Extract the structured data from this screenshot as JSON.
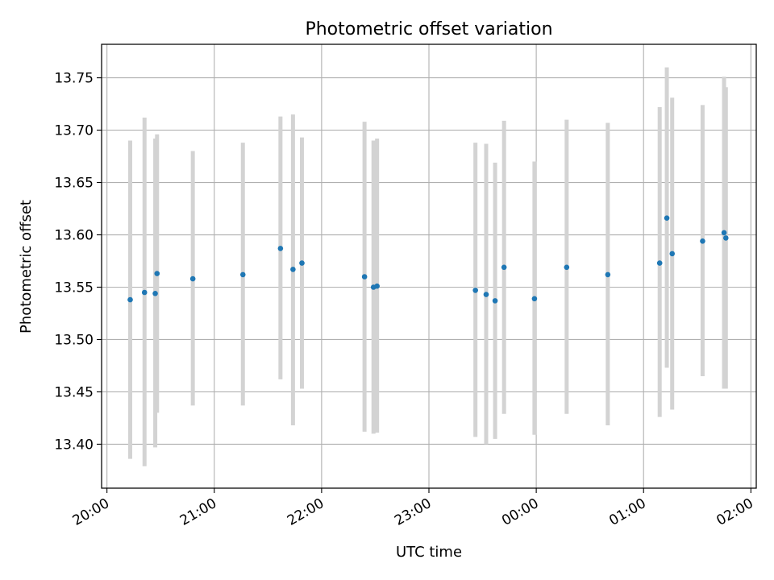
{
  "chart_data": {
    "type": "scatter",
    "title": "Photometric offset variation",
    "xlabel": "UTC time",
    "ylabel": "Photometric offset",
    "xlim": [
      "19:57",
      "02:03"
    ],
    "ylim": [
      13.358,
      13.782
    ],
    "grid": true,
    "x_ticks": [
      "20:00",
      "21:00",
      "22:00",
      "23:00",
      "00:00",
      "01:00",
      "02:00"
    ],
    "y_ticks": [
      "13.40",
      "13.45",
      "13.50",
      "13.55",
      "13.60",
      "13.65",
      "13.70",
      "13.75"
    ],
    "series": [
      {
        "marker_color": "#1f77b4",
        "errorbar_color": "#d3d3d3",
        "points": [
          {
            "t": "20:13",
            "y": 13.538,
            "lo": 13.386,
            "hi": 13.69
          },
          {
            "t": "20:21",
            "y": 13.545,
            "lo": 13.379,
            "hi": 13.712
          },
          {
            "t": "20:27",
            "y": 13.544,
            "lo": 13.397,
            "hi": 13.692
          },
          {
            "t": "20:28",
            "y": 13.563,
            "lo": 13.43,
            "hi": 13.696
          },
          {
            "t": "20:48",
            "y": 13.558,
            "lo": 13.437,
            "hi": 13.68
          },
          {
            "t": "21:16",
            "y": 13.562,
            "lo": 13.437,
            "hi": 13.688
          },
          {
            "t": "21:37",
            "y": 13.587,
            "lo": 13.462,
            "hi": 13.713
          },
          {
            "t": "21:44",
            "y": 13.567,
            "lo": 13.418,
            "hi": 13.715
          },
          {
            "t": "21:49",
            "y": 13.573,
            "lo": 13.453,
            "hi": 13.693
          },
          {
            "t": "22:24",
            "y": 13.56,
            "lo": 13.412,
            "hi": 13.708
          },
          {
            "t": "22:29",
            "y": 13.55,
            "lo": 13.41,
            "hi": 13.69
          },
          {
            "t": "22:31",
            "y": 13.551,
            "lo": 13.411,
            "hi": 13.692
          },
          {
            "t": "23:26",
            "y": 13.547,
            "lo": 13.407,
            "hi": 13.688
          },
          {
            "t": "23:32",
            "y": 13.543,
            "lo": 13.4,
            "hi": 13.687
          },
          {
            "t": "23:37",
            "y": 13.537,
            "lo": 13.405,
            "hi": 13.669
          },
          {
            "t": "23:42",
            "y": 13.569,
            "lo": 13.429,
            "hi": 13.709
          },
          {
            "t": "23:59",
            "y": 13.539,
            "lo": 13.409,
            "hi": 13.67
          },
          {
            "t": "00:17",
            "y": 13.569,
            "lo": 13.429,
            "hi": 13.71
          },
          {
            "t": "00:40",
            "y": 13.562,
            "lo": 13.418,
            "hi": 13.707
          },
          {
            "t": "01:09",
            "y": 13.573,
            "lo": 13.426,
            "hi": 13.722
          },
          {
            "t": "01:13",
            "y": 13.616,
            "lo": 13.473,
            "hi": 13.76
          },
          {
            "t": "01:16",
            "y": 13.582,
            "lo": 13.433,
            "hi": 13.731
          },
          {
            "t": "01:33",
            "y": 13.594,
            "lo": 13.465,
            "hi": 13.724
          },
          {
            "t": "01:45",
            "y": 13.602,
            "lo": 13.453,
            "hi": 13.751
          },
          {
            "t": "01:46",
            "y": 13.597,
            "lo": 13.453,
            "hi": 13.741
          }
        ]
      }
    ]
  }
}
